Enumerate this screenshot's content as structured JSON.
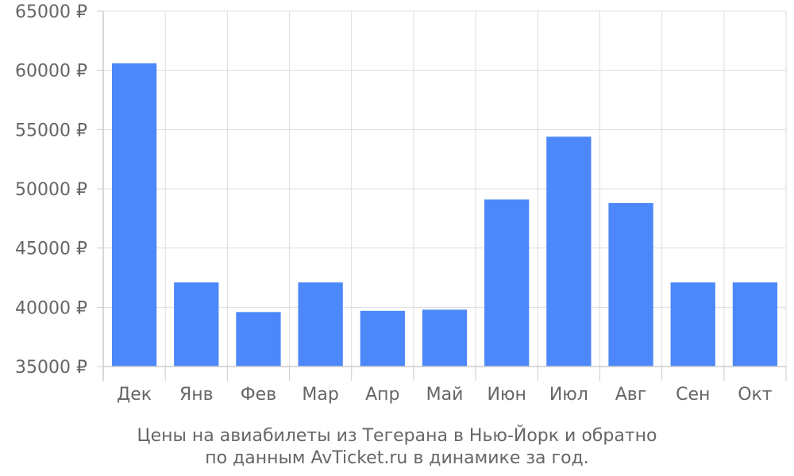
{
  "chart_data": {
    "type": "bar",
    "categories": [
      "Дек",
      "Янв",
      "Фев",
      "Мар",
      "Апр",
      "Май",
      "Июн",
      "Июл",
      "Авг",
      "Сен",
      "Окт"
    ],
    "values": [
      60600,
      42100,
      39600,
      42100,
      39700,
      39800,
      49100,
      54400,
      48800,
      42100,
      42100
    ],
    "ylim": [
      35000,
      65000
    ],
    "yticks": [
      35000,
      40000,
      45000,
      50000,
      55000,
      60000,
      65000
    ],
    "ytick_labels": [
      "35000 ₽",
      "40000 ₽",
      "45000 ₽",
      "50000 ₽",
      "55000 ₽",
      "60000 ₽",
      "65000 ₽"
    ],
    "grid": true,
    "bar_color": "#4d88fa",
    "caption_lines": [
      "Цены на авиабилеты из Тегерана в Нью-Йорк и обратно",
      "по данным AvTicket.ru в динамике за год."
    ]
  }
}
